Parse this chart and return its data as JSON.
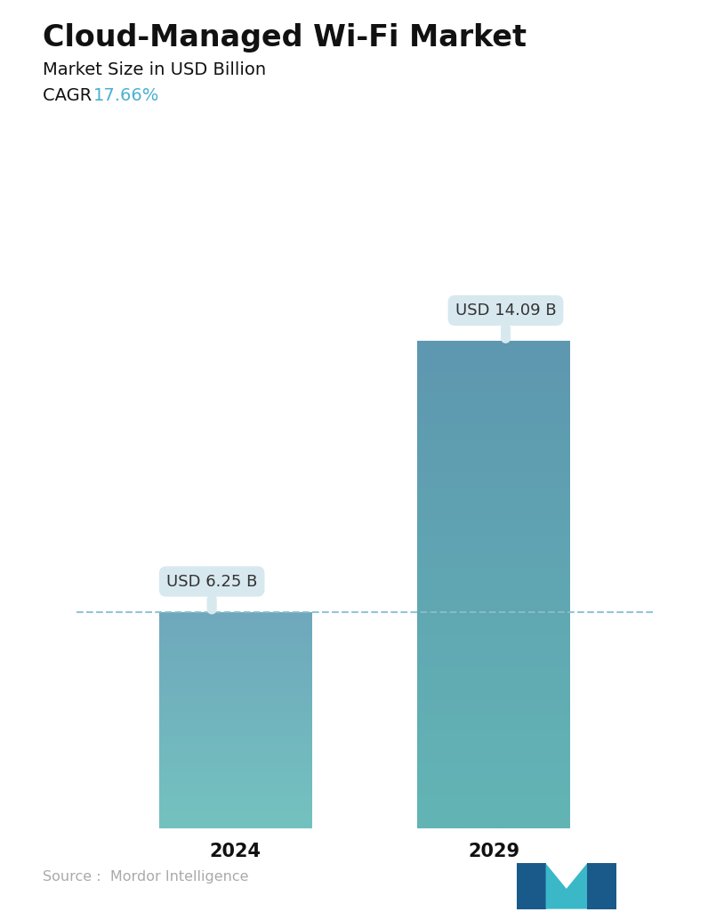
{
  "title": "Cloud-Managed Wi-Fi Market",
  "subtitle": "Market Size in USD Billion",
  "cagr_label": "CAGR  ",
  "cagr_value": "17.66%",
  "cagr_color": "#4aafd4",
  "categories": [
    "2024",
    "2029"
  ],
  "values": [
    6.25,
    14.09
  ],
  "labels": [
    "USD 6.25 B",
    "USD 14.09 B"
  ],
  "bar1_color_top": "#6fa8bc",
  "bar1_color_bottom": "#74c2c0",
  "bar2_color_top": "#5e97b0",
  "bar2_color_bottom": "#63b5b5",
  "dashed_line_y": 6.25,
  "dashed_line_color": "#88bfcc",
  "ylim": [
    0,
    16.5
  ],
  "source_text": "Source :  Mordor Intelligence",
  "source_color": "#aaaaaa",
  "background_color": "#ffffff",
  "title_fontsize": 24,
  "subtitle_fontsize": 14,
  "cagr_fontsize": 14,
  "xlabel_fontsize": 15,
  "label_fontsize": 13,
  "annotation_bg": "#d8e8ef"
}
